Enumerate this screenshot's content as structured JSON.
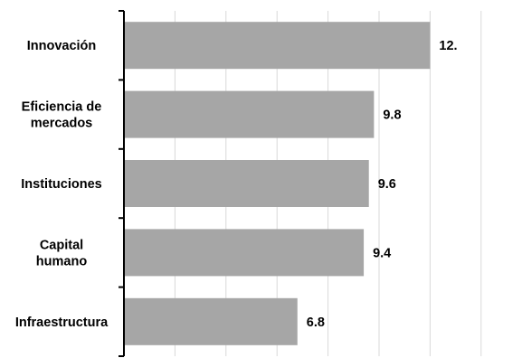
{
  "chart_data": {
    "type": "bar",
    "orientation": "horizontal",
    "categories": [
      "Innovación",
      [
        "Eficiencia de",
        "mercados"
      ],
      "Instituciones",
      [
        "Capital",
        "humano"
      ],
      "Infraestructura"
    ],
    "values": [
      12.0,
      9.8,
      9.6,
      9.4,
      6.8
    ],
    "data_labels": [
      "12.",
      "9.8",
      "9.6",
      "9.4",
      "6.8"
    ],
    "title": "",
    "xlabel": "",
    "ylabel": "",
    "xlim": [
      0,
      14
    ],
    "grid_interval": 2,
    "grid": true,
    "legend": "none",
    "colors": {
      "bar": "#a6a6a6",
      "grid": "#d9d9d9",
      "axis": "#000000",
      "text": "#000000"
    }
  }
}
